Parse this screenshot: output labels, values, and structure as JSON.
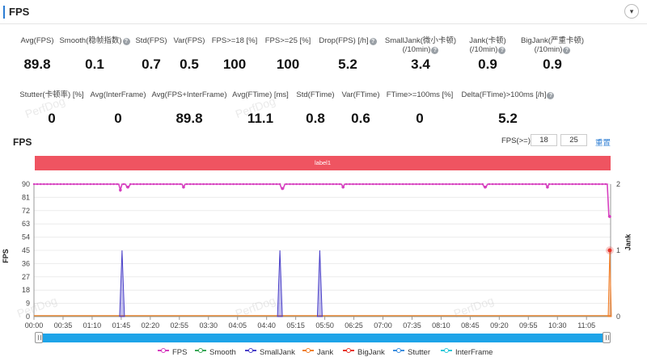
{
  "header": {
    "title": "FPS",
    "collapse_icon": "▾"
  },
  "stats_row1": [
    {
      "label": "Avg(FPS)",
      "value": "89.8",
      "help": false
    },
    {
      "label": "Smooth(稳帧指数)",
      "value": "0.1",
      "help": true
    },
    {
      "label": "Std(FPS)",
      "value": "0.7",
      "help": false
    },
    {
      "label": "Var(FPS)",
      "value": "0.5",
      "help": false
    },
    {
      "label": "FPS>=18 [%]",
      "value": "100",
      "help": false
    },
    {
      "label": "FPS>=25 [%]",
      "value": "100",
      "help": false
    },
    {
      "label": "Drop(FPS) [/h]",
      "value": "5.2",
      "help": true
    },
    {
      "label": "SmallJank(微小卡顿)",
      "label2": "(/10min)",
      "value": "3.4",
      "help": true
    },
    {
      "label": "Jank(卡顿)",
      "label2": "(/10min)",
      "value": "0.9",
      "help": true
    },
    {
      "label": "BigJank(严重卡顿)",
      "label2": "(/10min)",
      "value": "0.9",
      "help": true
    }
  ],
  "stats_row2": [
    {
      "label": "Stutter(卡顿率) [%]",
      "value": "0",
      "help": false
    },
    {
      "label": "Avg(InterFrame)",
      "value": "0",
      "help": false
    },
    {
      "label": "Avg(FPS+InterFrame)",
      "value": "89.8",
      "help": false
    },
    {
      "label": "Avg(FTime) [ms]",
      "value": "11.1",
      "help": false
    },
    {
      "label": "Std(FTime)",
      "value": "0.8",
      "help": false
    },
    {
      "label": "Var(FTime)",
      "value": "0.6",
      "help": false
    },
    {
      "label": "FTime>=100ms [%]",
      "value": "0",
      "help": false
    },
    {
      "label": "Delta(FTime)>100ms [/h]",
      "value": "5.2",
      "help": true
    }
  ],
  "help_icon": "?",
  "chart_title": "FPS",
  "fps_threshold": {
    "label": "FPS(>=)",
    "low": "18",
    "high": "25",
    "reset": "重置"
  },
  "label_band": "label1",
  "watermark": "PerfDog",
  "colors": {
    "accent": "#2b7cd3",
    "band": "#ef5461",
    "fps": "#d63fbf",
    "smooth": "#3aa757",
    "smalljank": "#4a40c8",
    "jank": "#f07f2a",
    "bigjank": "#e8352b",
    "stutter": "#3c8ee0",
    "interframe": "#2ec9d9",
    "slider": "#1ea4e8"
  },
  "chart_data": {
    "type": "line",
    "ylabel": "FPS",
    "y2label": "Jank",
    "ylim": [
      0,
      90
    ],
    "y2lim": [
      0,
      2
    ],
    "y_ticks": [
      "0",
      "9",
      "18",
      "27",
      "36",
      "45",
      "54",
      "63",
      "72",
      "81",
      "90"
    ],
    "y2_ticks": [
      "0",
      "1",
      "2"
    ],
    "x_ticks": [
      "00:00",
      "00:35",
      "01:10",
      "01:45",
      "02:20",
      "02:55",
      "03:30",
      "04:05",
      "04:40",
      "05:15",
      "05:50",
      "06:25",
      "07:00",
      "07:35",
      "08:10",
      "08:45",
      "09:20",
      "09:55",
      "10:30",
      "11:05"
    ],
    "x_max_seconds": 694,
    "grid": true,
    "legend_position": "bottom",
    "series": [
      {
        "name": "FPS",
        "color_key": "fps",
        "baseline": 90,
        "dips": [
          [
            104,
            86
          ],
          [
            113,
            88
          ],
          [
            180,
            88
          ],
          [
            299,
            87
          ],
          [
            372,
            88
          ],
          [
            543,
            88
          ],
          [
            618,
            88
          ],
          [
            693,
            68
          ]
        ]
      },
      {
        "name": "Smooth",
        "color_key": "smooth",
        "baseline": 0
      },
      {
        "name": "SmallJank",
        "color_key": "smalljank",
        "spikes": [
          [
            106,
            1
          ],
          [
            296,
            1
          ],
          [
            344,
            1
          ]
        ]
      },
      {
        "name": "Jank",
        "color_key": "jank",
        "spikes": [
          [
            693,
            1
          ]
        ]
      },
      {
        "name": "BigJank",
        "color_key": "bigjank",
        "points": [
          [
            693,
            1
          ]
        ]
      },
      {
        "name": "Stutter",
        "color_key": "stutter",
        "baseline": 0
      },
      {
        "name": "InterFrame",
        "color_key": "interframe",
        "baseline": 0
      }
    ]
  }
}
